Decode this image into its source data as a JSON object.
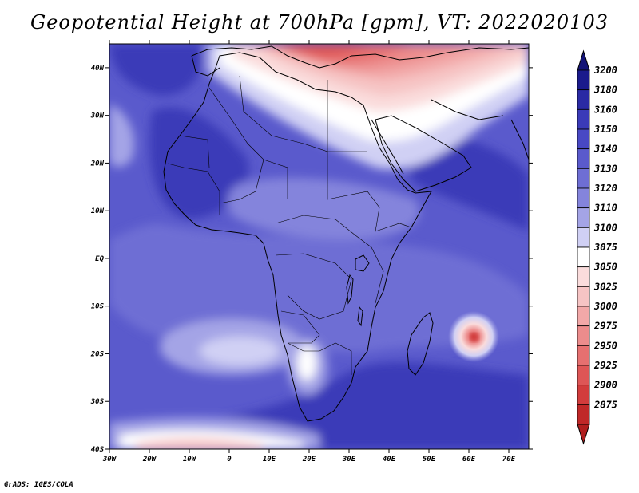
{
  "title": "Geopotential Height at 700hPa [gpm], VT: 2022020103",
  "credit": "GrADS: IGES/COLA",
  "axes": {
    "lat_ticks": [
      {
        "label": "40N",
        "lat": 40
      },
      {
        "label": "30N",
        "lat": 30
      },
      {
        "label": "20N",
        "lat": 20
      },
      {
        "label": "10N",
        "lat": 10
      },
      {
        "label": "EQ",
        "lat": 0
      },
      {
        "label": "10S",
        "lat": -10
      },
      {
        "label": "20S",
        "lat": -20
      },
      {
        "label": "30S",
        "lat": -30
      },
      {
        "label": "40S",
        "lat": -40
      }
    ],
    "lon_ticks": [
      {
        "label": "30W",
        "lon": -30
      },
      {
        "label": "20W",
        "lon": -20
      },
      {
        "label": "10W",
        "lon": -10
      },
      {
        "label": "0",
        "lon": 0
      },
      {
        "label": "10E",
        "lon": 10
      },
      {
        "label": "20E",
        "lon": 20
      },
      {
        "label": "30E",
        "lon": 30
      },
      {
        "label": "40E",
        "lon": 40
      },
      {
        "label": "50E",
        "lon": 50
      },
      {
        "label": "60E",
        "lon": 60
      },
      {
        "label": "70E",
        "lon": 70
      }
    ],
    "lon_range": [
      -30,
      75
    ],
    "lat_range": [
      -40,
      45
    ]
  },
  "colorbar": {
    "levels": [
      {
        "label": "3200",
        "color": "#1a1a8c"
      },
      {
        "label": "3180",
        "color": "#2a2aa4"
      },
      {
        "label": "3160",
        "color": "#3a3ab8"
      },
      {
        "label": "3150",
        "color": "#4848c4"
      },
      {
        "label": "3140",
        "color": "#5a5acc"
      },
      {
        "label": "3130",
        "color": "#6e6ed4"
      },
      {
        "label": "3120",
        "color": "#8484dc"
      },
      {
        "label": "3110",
        "color": "#a4a4e6"
      },
      {
        "label": "3100",
        "color": "#d0d0f4"
      },
      {
        "label": "3075",
        "color": "#ffffff"
      },
      {
        "label": "3050",
        "color": "#fadcdc"
      },
      {
        "label": "3025",
        "color": "#f6c4c4"
      },
      {
        "label": "3000",
        "color": "#f2a8a8"
      },
      {
        "label": "2975",
        "color": "#ec8c8c"
      },
      {
        "label": "2950",
        "color": "#e67070"
      },
      {
        "label": "2925",
        "color": "#de5656"
      },
      {
        "label": "2900",
        "color": "#d23c3c"
      },
      {
        "label": "2875",
        "color": "#c02828"
      }
    ],
    "top_arrow_color": "#141478",
    "bottom_arrow_color": "#b01e1e"
  },
  "field_colors": {
    "ocean_base": "#5a5acc",
    "deep": "#3a3ab8",
    "mid": "#6e6ed4",
    "light": "#8484dc",
    "pale": "#a4a4e6",
    "very_pale": "#d0d0f4",
    "white": "#ffffff",
    "pink1": "#fadcdc",
    "pink2": "#f6c4c4",
    "pink3": "#f2a8a8",
    "red1": "#ec8c8c",
    "red2": "#e67070",
    "red3": "#de5656",
    "red4": "#d23c3c",
    "red5": "#c02828"
  }
}
